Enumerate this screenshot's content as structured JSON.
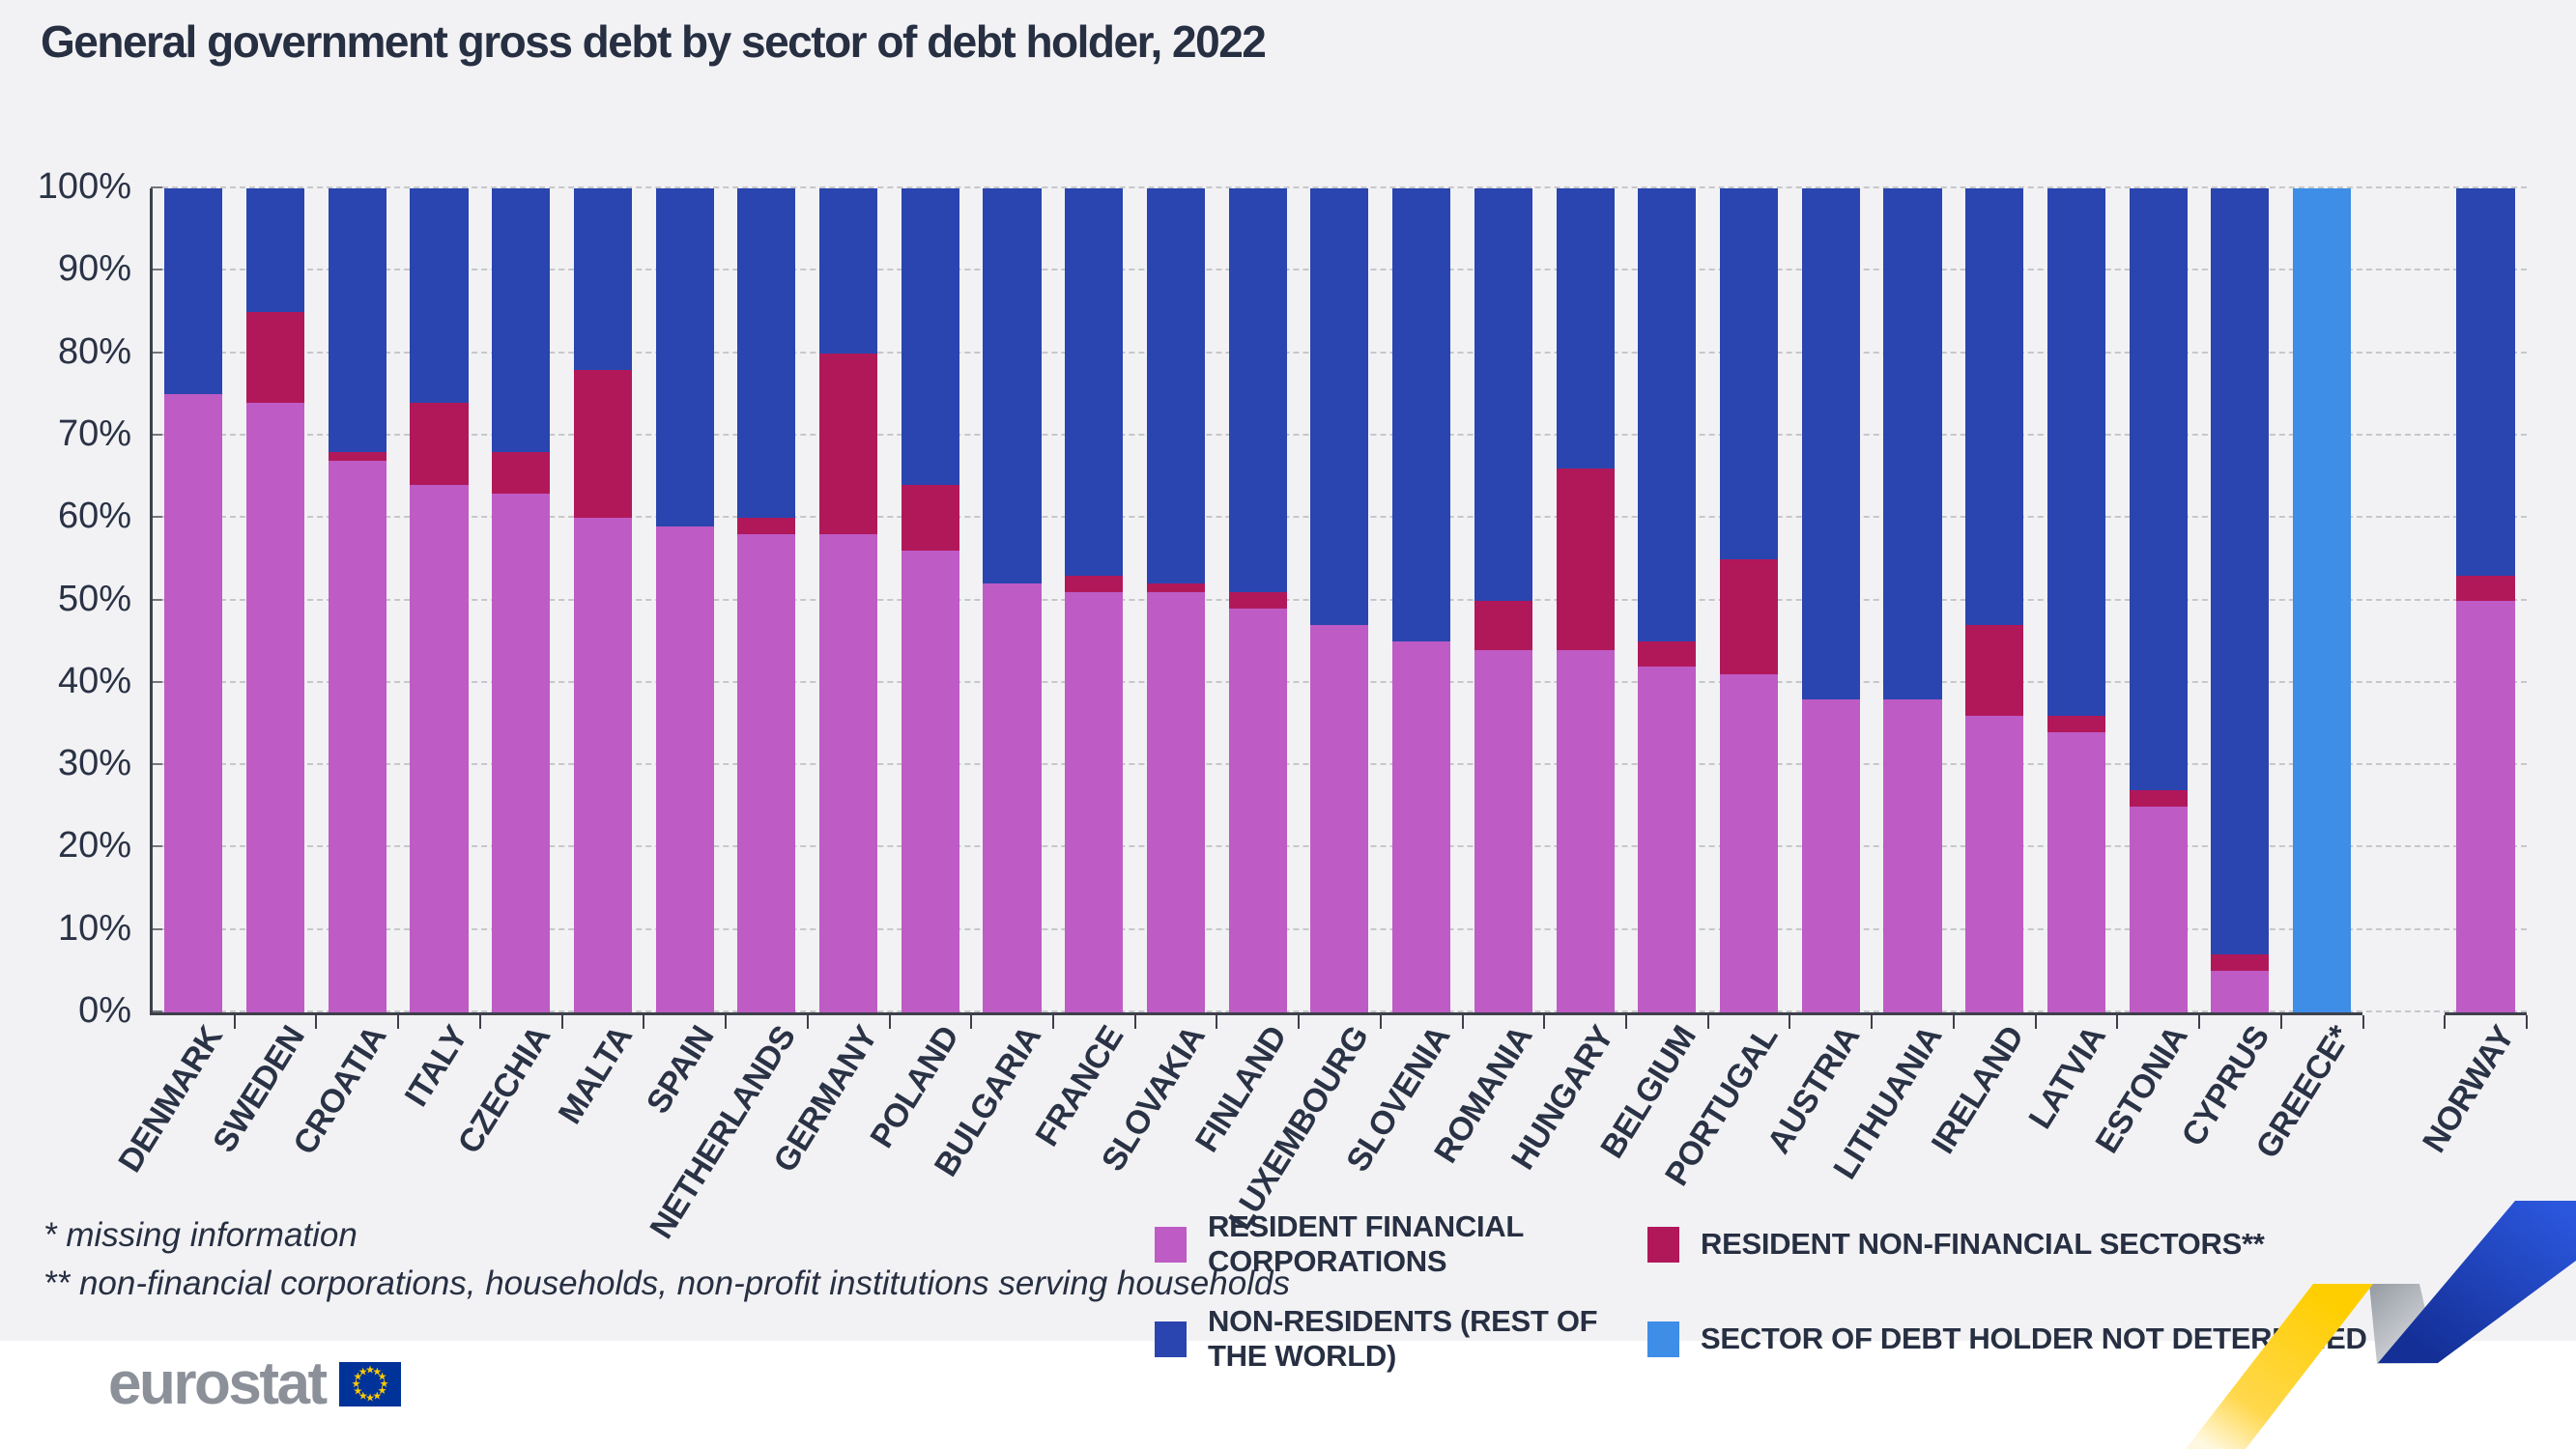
{
  "title": "General government gross debt by sector of debt holder, 2022",
  "y_axis": {
    "labels": [
      "0%",
      "10%",
      "20%",
      "30%",
      "40%",
      "50%",
      "60%",
      "70%",
      "80%",
      "90%",
      "100%"
    ],
    "unit": "%"
  },
  "legend": [
    {
      "key": "financial",
      "label": "RESIDENT FINANCIAL CORPORATIONS"
    },
    {
      "key": "nonfinancial",
      "label": "RESIDENT NON-FINANCIAL SECTORS**"
    },
    {
      "key": "nonresidents",
      "label": "NON-RESIDENTS (REST OF THE WORLD)"
    },
    {
      "key": "notdetermined",
      "label": "SECTOR OF DEBT HOLDER NOT DETERMINED"
    }
  ],
  "footnotes": [
    "* missing information",
    "** non-financial corporations, households, non-profit institutions serving households"
  ],
  "logo": {
    "text": "eurostat"
  },
  "colors": {
    "financial": "#be5bc5",
    "nonfinancial": "#b1185a",
    "nonresidents": "#2a45af",
    "notdetermined": "#3e8de6",
    "background": "#f2f2f4",
    "text": "#2a3245",
    "grid": "#c6c7ca",
    "axis": "#3d404a",
    "logo_gray": "#8b9099",
    "flag_blue": "#003399",
    "star_yellow": "#ffcc00"
  },
  "chart_data": {
    "type": "bar",
    "stacked": true,
    "value_unit": "percent",
    "title": "General government gross debt by sector of debt holder, 2022",
    "xlabel": "",
    "ylabel": "",
    "ylim": [
      0,
      100
    ],
    "ytick_step": 10,
    "grid": "horizontal-dashed",
    "legend_position": "bottom-right",
    "spacer_after_category": "GREECE*",
    "categories": [
      "DENMARK",
      "SWEDEN",
      "CROATIA",
      "ITALY",
      "CZECHIA",
      "MALTA",
      "SPAIN",
      "NETHERLANDS",
      "GERMANY",
      "POLAND",
      "BULGARIA",
      "FRANCE",
      "SLOVAKIA",
      "FINLAND",
      "LUXEMBOURG",
      "SLOVENIA",
      "ROMANIA",
      "HUNGARY",
      "BELGIUM",
      "PORTUGAL",
      "AUSTRIA",
      "LITHUANIA",
      "IRELAND",
      "LATVIA",
      "ESTONIA",
      "CYPRUS",
      "GREECE*",
      "NORWAY"
    ],
    "series": [
      {
        "key": "financial",
        "name": "RESIDENT FINANCIAL CORPORATIONS",
        "values": [
          75,
          74,
          67,
          64,
          63,
          60,
          59,
          58,
          58,
          56,
          52,
          51,
          51,
          49,
          47,
          45,
          44,
          44,
          42,
          41,
          38,
          38,
          36,
          34,
          25,
          5,
          0,
          50
        ]
      },
      {
        "key": "nonfinancial",
        "name": "RESIDENT NON-FINANCIAL SECTORS**",
        "values": [
          0,
          11,
          1,
          10,
          5,
          18,
          0,
          2,
          22,
          8,
          0,
          2,
          1,
          2,
          0,
          0,
          6,
          22,
          3,
          14,
          0,
          0,
          11,
          2,
          2,
          2,
          0,
          3
        ]
      },
      {
        "key": "nonresidents",
        "name": "NON-RESIDENTS (REST OF THE WORLD)",
        "values": [
          25,
          15,
          32,
          26,
          32,
          22,
          41,
          40,
          20,
          36,
          48,
          47,
          48,
          49,
          53,
          55,
          50,
          34,
          55,
          45,
          62,
          62,
          53,
          64,
          73,
          93,
          0,
          47
        ]
      },
      {
        "key": "notdetermined",
        "name": "SECTOR OF DEBT HOLDER NOT DETERMINED",
        "values": [
          0,
          0,
          0,
          0,
          0,
          0,
          0,
          0,
          0,
          0,
          0,
          0,
          0,
          0,
          0,
          0,
          0,
          0,
          0,
          0,
          0,
          0,
          0,
          0,
          0,
          0,
          100,
          0
        ]
      }
    ]
  }
}
